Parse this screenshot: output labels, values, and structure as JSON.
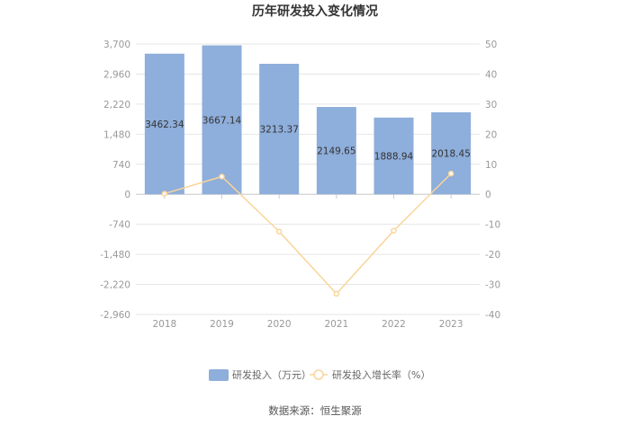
{
  "chart_data": {
    "type": "bar",
    "title": "历年研发投入变化情况",
    "categories": [
      "2018",
      "2019",
      "2020",
      "2021",
      "2022",
      "2023"
    ],
    "series": [
      {
        "name": "研发投入（万元）",
        "type": "bar",
        "axis": "left",
        "color": "#8eaedb",
        "values": [
          3462.34,
          3667.14,
          3213.37,
          2149.65,
          1888.94,
          2018.45
        ],
        "labels": [
          "3462.34",
          "3667.14",
          "3213.37",
          "2149.65",
          "1888.94",
          "2018.45"
        ]
      },
      {
        "name": "研发投入增长率（%）",
        "type": "line",
        "axis": "right",
        "color": "#f9d59a",
        "values": [
          0.2,
          5.9,
          -12.4,
          -33.1,
          -12.1,
          6.9
        ]
      }
    ],
    "left_axis": {
      "ylim": [
        -2960,
        3700
      ],
      "ticks": [
        3700,
        2960,
        2220,
        1480,
        740,
        0,
        -740,
        -1480,
        -2220,
        -2960
      ],
      "tick_labels": [
        "3,700",
        "2,960",
        "2,220",
        "1,480",
        "740",
        "0",
        "-740",
        "-1,480",
        "-2,220",
        "-2,960"
      ]
    },
    "right_axis": {
      "ylim": [
        -40,
        50
      ],
      "ticks": [
        50,
        40,
        30,
        20,
        10,
        0,
        -10,
        -20,
        -30,
        -40
      ],
      "tick_labels": [
        "50",
        "40",
        "30",
        "20",
        "10",
        "0",
        "-10",
        "-20",
        "-30",
        "-40"
      ]
    },
    "grid": true,
    "legend_position": "bottom"
  },
  "source": "数据来源：恒生聚源"
}
